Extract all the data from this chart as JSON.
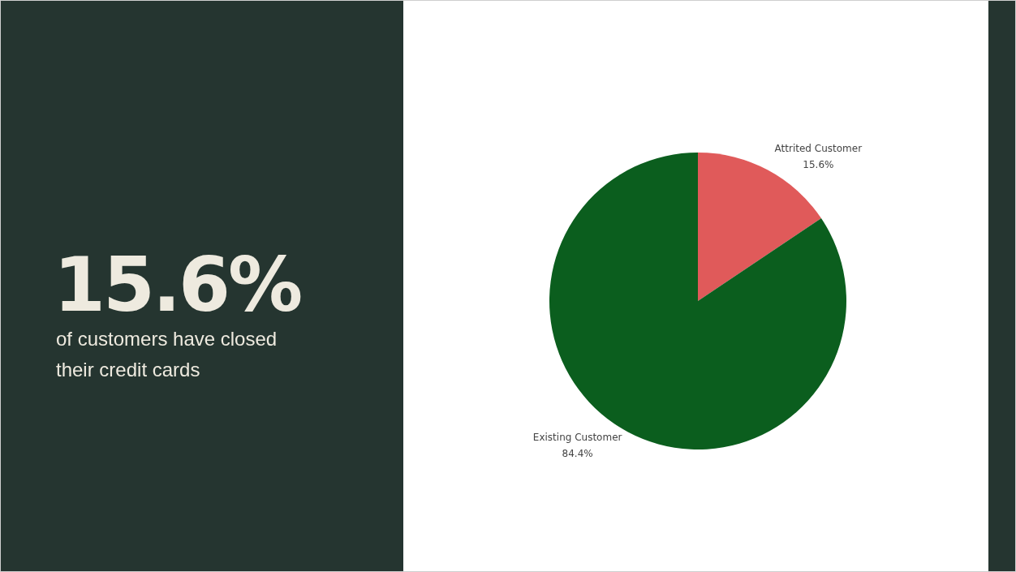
{
  "chart_data": {
    "type": "pie",
    "title": "15.6%",
    "subtitle": "of customers have closed their credit cards",
    "categories": [
      "Attrited Customer",
      "Existing Customer"
    ],
    "values": [
      15.6,
      84.4
    ],
    "colors": [
      "#e05a5a",
      "#0b5e1e"
    ],
    "value_labels": [
      "15.6%",
      "84.4%"
    ]
  }
}
